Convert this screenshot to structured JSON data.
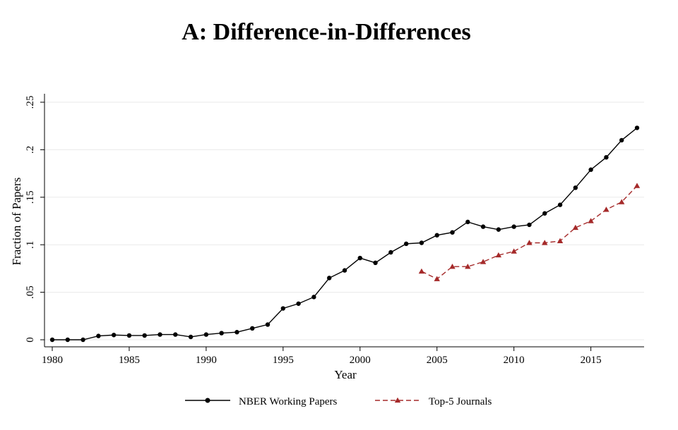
{
  "chart_data": {
    "type": "line",
    "title": "A: Difference-in-Differences",
    "xlabel": "Year",
    "ylabel": "Fraction of Papers",
    "xlim": [
      1980,
      2018
    ],
    "ylim": [
      0,
      0.25
    ],
    "x_ticks": [
      1980,
      1985,
      1990,
      1995,
      2000,
      2005,
      2010,
      2015
    ],
    "x_tick_labels": [
      "1980",
      "1985",
      "1990",
      "1995",
      "2000",
      "2005",
      "2010",
      "2015"
    ],
    "y_ticks": [
      0,
      0.05,
      0.1,
      0.15,
      0.2,
      0.25
    ],
    "y_tick_labels": [
      "0",
      ".05",
      ".1",
      ".15",
      ".2",
      ".25"
    ],
    "grid": "horizontal",
    "legend_position": "bottom",
    "series": [
      {
        "name": "NBER Working Papers",
        "color": "#000000",
        "marker": "circle",
        "line_style": "solid",
        "x": [
          1980,
          1981,
          1982,
          1983,
          1984,
          1985,
          1986,
          1987,
          1988,
          1989,
          1990,
          1991,
          1992,
          1993,
          1994,
          1995,
          1996,
          1997,
          1998,
          1999,
          2000,
          2001,
          2002,
          2003,
          2004,
          2005,
          2006,
          2007,
          2008,
          2009,
          2010,
          2011,
          2012,
          2013,
          2014,
          2015,
          2016,
          2017,
          2018
        ],
        "y": [
          0,
          0,
          0,
          0.004,
          0.005,
          0.0045,
          0.0045,
          0.0055,
          0.0055,
          0.003,
          0.0055,
          0.007,
          0.008,
          0.012,
          0.016,
          0.033,
          0.038,
          0.045,
          0.065,
          0.073,
          0.086,
          0.081,
          0.092,
          0.101,
          0.102,
          0.11,
          0.113,
          0.124,
          0.119,
          0.116,
          0.119,
          0.121,
          0.133,
          0.142,
          0.16,
          0.179,
          0.192,
          0.21,
          0.223
        ]
      },
      {
        "name": "Top-5 Journals",
        "color": "#a52a2a",
        "marker": "triangle",
        "line_style": "dashed",
        "x": [
          2004,
          2005,
          2006,
          2007,
          2008,
          2009,
          2010,
          2011,
          2012,
          2013,
          2014,
          2015,
          2016,
          2017,
          2018
        ],
        "y": [
          0.072,
          0.064,
          0.077,
          0.077,
          0.082,
          0.089,
          0.093,
          0.102,
          0.102,
          0.104,
          0.118,
          0.125,
          0.137,
          0.145,
          0.162
        ]
      }
    ]
  }
}
